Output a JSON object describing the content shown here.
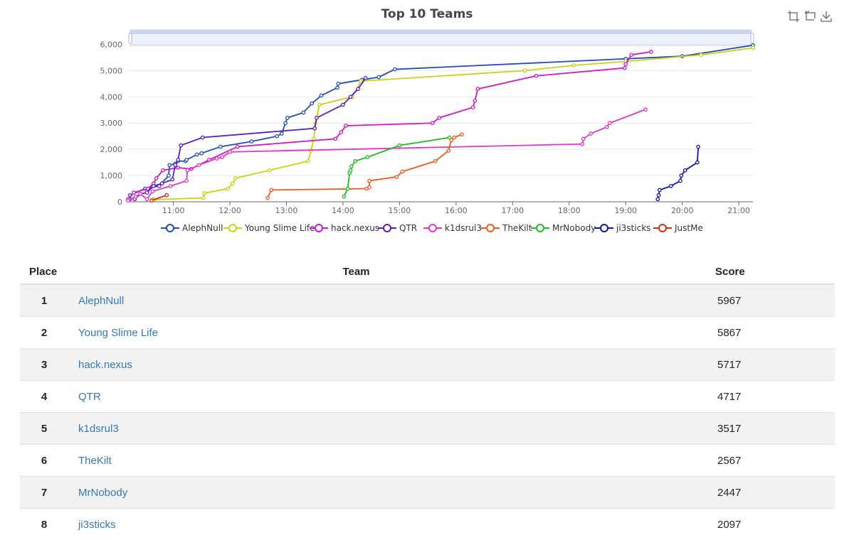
{
  "chart_data": {
    "type": "line",
    "title": "Top 10 Teams",
    "x_ticks": [
      "11:00",
      "12:00",
      "13:00",
      "14:00",
      "15:00",
      "16:00",
      "17:00",
      "18:00",
      "19:00",
      "20:00",
      "21:00"
    ],
    "y_ticks": [
      "0",
      "1,000",
      "2,000",
      "3,000",
      "4,000",
      "5,000",
      "6,000"
    ],
    "xlim": [
      "10:12",
      "21:15"
    ],
    "ylim": [
      0,
      6500
    ],
    "grid": true,
    "legend_position": "bottom",
    "series": [
      {
        "name": "AlephNull",
        "color": "#1f4fb4",
        "points": [
          [
            "10:14",
            100
          ],
          [
            "10:14",
            250
          ],
          [
            "10:30",
            500
          ],
          [
            "10:45",
            600
          ],
          [
            "10:55",
            1000
          ],
          [
            "10:56",
            1400
          ],
          [
            "11:02",
            1450
          ],
          [
            "11:05",
            1550
          ],
          [
            "11:13",
            1550
          ],
          [
            "11:14",
            1600
          ],
          [
            "11:25",
            1800
          ],
          [
            "11:30",
            1850
          ],
          [
            "11:50",
            2100
          ],
          [
            "12:23",
            2300
          ],
          [
            "12:50",
            2500
          ],
          [
            "12:55",
            2600
          ],
          [
            "12:59",
            3000
          ],
          [
            "13:01",
            3200
          ],
          [
            "13:18",
            3400
          ],
          [
            "13:27",
            3750
          ],
          [
            "13:37",
            4050
          ],
          [
            "13:54",
            4350
          ],
          [
            "13:55",
            4500
          ],
          [
            "14:20",
            4650
          ],
          [
            "14:38",
            4750
          ],
          [
            "14:55",
            5050
          ],
          [
            "19:00",
            5450
          ],
          [
            "20:00",
            5550
          ],
          [
            "21:15",
            5967
          ]
        ]
      },
      {
        "name": "Young Slime Life",
        "color": "#c9d40d",
        "points": [
          [
            "10:39",
            100
          ],
          [
            "10:40",
            80
          ],
          [
            "11:32",
            150
          ],
          [
            "11:33",
            330
          ],
          [
            "11:58",
            500
          ],
          [
            "12:03",
            700
          ],
          [
            "12:06",
            900
          ],
          [
            "12:42",
            1200
          ],
          [
            "13:23",
            1550
          ],
          [
            "13:26",
            1950
          ],
          [
            "13:29",
            2400
          ],
          [
            "13:31",
            3000
          ],
          [
            "13:35",
            3700
          ],
          [
            "14:10",
            4000
          ],
          [
            "14:19",
            4600
          ],
          [
            "17:13",
            5000
          ],
          [
            "18:05",
            5200
          ],
          [
            "19:00",
            5350
          ],
          [
            "20:20",
            5600
          ],
          [
            "21:15",
            5867
          ]
        ]
      },
      {
        "name": "hack.nexus",
        "color": "#cf17c4",
        "points": [
          [
            "10:12",
            100
          ],
          [
            "10:18",
            350
          ],
          [
            "10:33",
            500
          ],
          [
            "10:39",
            700
          ],
          [
            "10:42",
            900
          ],
          [
            "10:49",
            1200
          ],
          [
            "11:05",
            1300
          ],
          [
            "11:19",
            1250
          ],
          [
            "11:38",
            1600
          ],
          [
            "12:08",
            2100
          ],
          [
            "13:52",
            2400
          ],
          [
            "13:58",
            2650
          ],
          [
            "14:03",
            2900
          ],
          [
            "15:35",
            3000
          ],
          [
            "15:42",
            3200
          ],
          [
            "16:18",
            3600
          ],
          [
            "16:20",
            3850
          ],
          [
            "16:23",
            4300
          ],
          [
            "17:25",
            4800
          ],
          [
            "18:59",
            5100
          ],
          [
            "19:00",
            5250
          ],
          [
            "19:06",
            5600
          ],
          [
            "19:27",
            5717
          ]
        ]
      },
      {
        "name": "QTR",
        "color": "#5a1cc2",
        "points": [
          [
            "10:19",
            100
          ],
          [
            "10:25",
            300
          ],
          [
            "10:32",
            350
          ],
          [
            "10:39",
            600
          ],
          [
            "10:48",
            700
          ],
          [
            "10:59",
            850
          ],
          [
            "11:02",
            1400
          ],
          [
            "11:05",
            1600
          ],
          [
            "11:08",
            2150
          ],
          [
            "11:31",
            2450
          ],
          [
            "13:30",
            2800
          ],
          [
            "13:32",
            3200
          ],
          [
            "13:60",
            3700
          ],
          [
            "14:08",
            4000
          ],
          [
            "14:16",
            4300
          ],
          [
            "14:24",
            4717
          ]
        ]
      },
      {
        "name": "k1dsrul3",
        "color": "#e235cc",
        "points": [
          [
            "10:12",
            50
          ],
          [
            "10:20",
            200
          ],
          [
            "10:25",
            300
          ],
          [
            "10:32",
            100
          ],
          [
            "10:38",
            400
          ],
          [
            "10:57",
            600
          ],
          [
            "11:14",
            800
          ],
          [
            "11:15",
            1200
          ],
          [
            "11:27",
            1400
          ],
          [
            "11:46",
            1650
          ],
          [
            "11:52",
            1700
          ],
          [
            "12:00",
            1900
          ],
          [
            "18:14",
            2200
          ],
          [
            "18:15",
            2400
          ],
          [
            "18:23",
            2600
          ],
          [
            "18:40",
            2850
          ],
          [
            "18:43",
            3000
          ],
          [
            "19:21",
            3517
          ]
        ]
      },
      {
        "name": "TheKilt",
        "color": "#f2581a",
        "points": [
          [
            "12:40",
            150
          ],
          [
            "12:44",
            450
          ],
          [
            "14:25",
            500
          ],
          [
            "14:28",
            550
          ],
          [
            "14:28",
            800
          ],
          [
            "14:57",
            950
          ],
          [
            "15:03",
            1150
          ],
          [
            "15:38",
            1550
          ],
          [
            "15:52",
            1950
          ],
          [
            "15:55",
            2350
          ],
          [
            "15:58",
            2450
          ],
          [
            "16:06",
            2567
          ]
        ]
      },
      {
        "name": "MrNobody",
        "color": "#1fbd1f",
        "points": [
          [
            "14:01",
            200
          ],
          [
            "14:05",
            500
          ],
          [
            "14:07",
            1100
          ],
          [
            "14:08",
            1200
          ],
          [
            "14:09",
            1350
          ],
          [
            "14:13",
            1550
          ],
          [
            "14:26",
            1700
          ],
          [
            "15:00",
            2150
          ],
          [
            "15:53",
            2447
          ]
        ]
      },
      {
        "name": "ji3sticks",
        "color": "#0d14a8",
        "points": [
          [
            "19:34",
            100
          ],
          [
            "19:35",
            250
          ],
          [
            "19:36",
            450
          ],
          [
            "19:48",
            600
          ],
          [
            "19:58",
            800
          ],
          [
            "19:59",
            1000
          ],
          [
            "20:03",
            1200
          ],
          [
            "20:16",
            1500
          ],
          [
            "20:17",
            2097
          ]
        ]
      },
      {
        "name": "JustMe",
        "color": "#d22b1c",
        "points": [
          [
            "10:37",
            50
          ],
          [
            "10:53",
            250
          ]
        ]
      }
    ]
  },
  "table": {
    "headers": {
      "place": "Place",
      "team": "Team",
      "score": "Score"
    },
    "rows": [
      {
        "place": "1",
        "team": "AlephNull",
        "score": "5967"
      },
      {
        "place": "2",
        "team": "Young Slime Life",
        "score": "5867"
      },
      {
        "place": "3",
        "team": "hack.nexus",
        "score": "5717"
      },
      {
        "place": "4",
        "team": "QTR",
        "score": "4717"
      },
      {
        "place": "5",
        "team": "k1dsrul3",
        "score": "3517"
      },
      {
        "place": "6",
        "team": "TheKilt",
        "score": "2567"
      },
      {
        "place": "7",
        "team": "MrNobody",
        "score": "2447"
      },
      {
        "place": "8",
        "team": "ji3sticks",
        "score": "2097"
      }
    ]
  },
  "toolbox": {
    "items": [
      {
        "icon": "zoom-select-icon"
      },
      {
        "icon": "zoom-reset-icon"
      },
      {
        "icon": "download-icon"
      }
    ]
  }
}
